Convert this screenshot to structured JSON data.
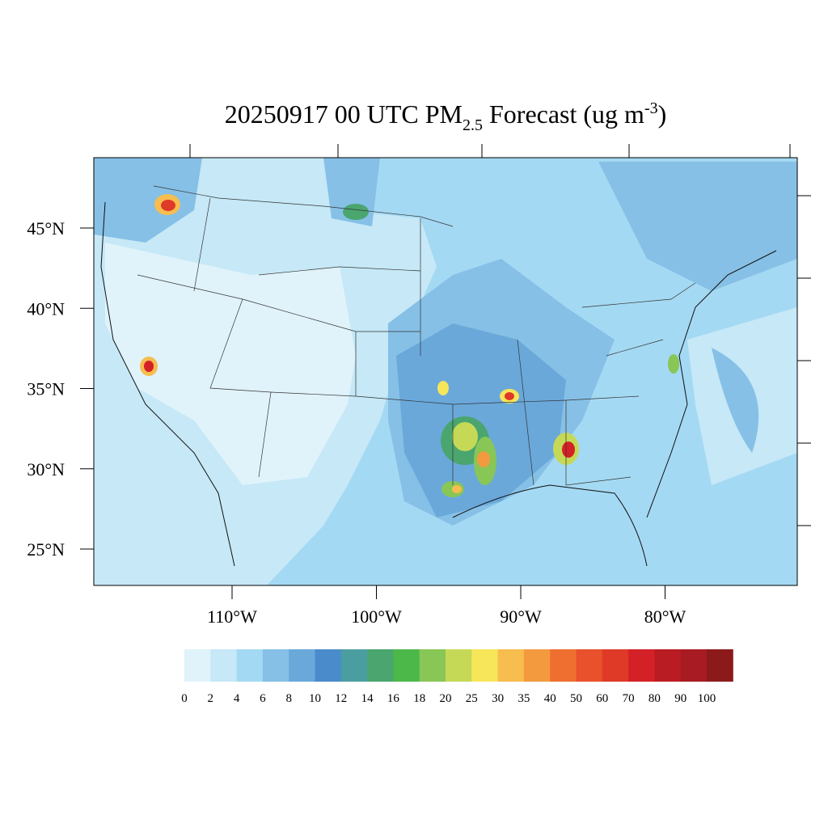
{
  "title": {
    "main": "20250917 00 UTC PM",
    "sub": "2.5",
    "middle": " Forecast (ug m",
    "sup": "-3",
    "end": ")"
  },
  "lat_labels": [
    {
      "value": 45,
      "label": "45°N"
    },
    {
      "value": 40,
      "label": "40°N"
    },
    {
      "value": 35,
      "label": "35°N"
    },
    {
      "value": 30,
      "label": "30°N"
    },
    {
      "value": 25,
      "label": "25°N"
    }
  ],
  "lon_labels": [
    {
      "value": -110,
      "label": "110°W"
    },
    {
      "value": -100,
      "label": "100°W"
    },
    {
      "value": -90,
      "label": "90°W"
    },
    {
      "value": -80,
      "label": "80°W"
    }
  ],
  "colorbar": {
    "labels": [
      "0",
      "2",
      "4",
      "6",
      "8",
      "10",
      "12",
      "14",
      "16",
      "18",
      "20",
      "25",
      "30",
      "35",
      "40",
      "50",
      "60",
      "70",
      "80",
      "90",
      "100"
    ],
    "colors": [
      "#e0f3fb",
      "#c6e8f7",
      "#a4d9f3",
      "#86c0e6",
      "#6aa8da",
      "#4a8bcb",
      "#4b9ea0",
      "#4aa56f",
      "#4db84a",
      "#88c656",
      "#c6d957",
      "#f7e55a",
      "#f7bd4f",
      "#f39a3f",
      "#ef6f30",
      "#e8512c",
      "#de3a27",
      "#d42127",
      "#b91c22",
      "#a81b22",
      "#8c1a1b"
    ]
  }
}
